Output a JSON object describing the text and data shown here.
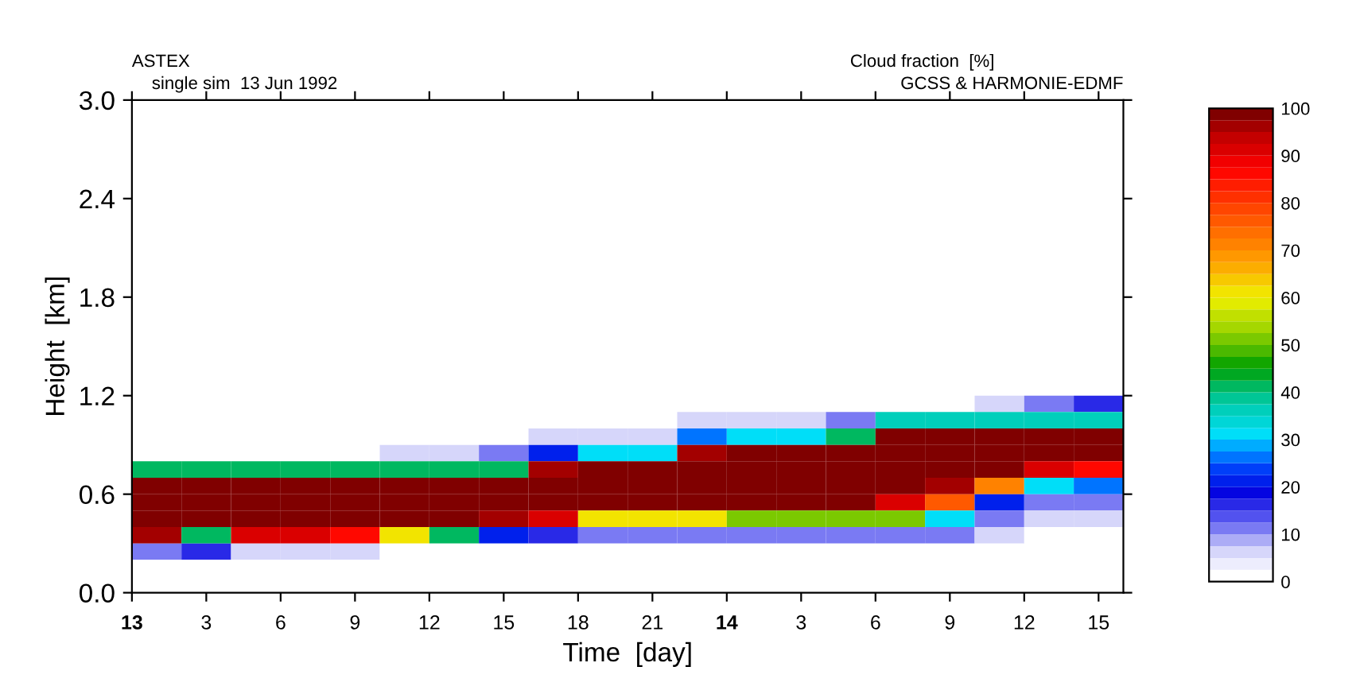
{
  "chart_data": {
    "type": "heatmap",
    "title": "ASTEX",
    "subtitle": "single sim  13 Jun 1992",
    "clabel": "Cloud fraction  [%]",
    "annotations": [
      "GCSS & HARMONIE-EDMF"
    ],
    "xlabel": "Time  [day]",
    "ylabel": "Height  [km]",
    "x": [
      "1992-06-13T01:00",
      "1992-06-13T03:00",
      "1992-06-13T05:00",
      "1992-06-13T07:00",
      "1992-06-13T09:00",
      "1992-06-13T11:00",
      "1992-06-13T13:00",
      "1992-06-13T15:00",
      "1992-06-13T17:00",
      "1992-06-13T19:00",
      "1992-06-13T21:00",
      "1992-06-13T23:00",
      "1992-06-14T01:00",
      "1992-06-14T03:00",
      "1992-06-14T05:00",
      "1992-06-14T07:00",
      "1992-06-14T09:00",
      "1992-06-14T11:00",
      "1992-06-14T13:00",
      "1992-06-14T15:00"
    ],
    "xlim": [
      "1992-06-13T00:00",
      "1992-06-14T16:00"
    ],
    "ylim": [
      0,
      3.0
    ],
    "xticks": [
      {
        "value": "1992-06-13T00:00",
        "label": "13"
      },
      {
        "value": "1992-06-13T03:00",
        "label": "3"
      },
      {
        "value": "1992-06-13T06:00",
        "label": "6"
      },
      {
        "value": "1992-06-13T09:00",
        "label": "9"
      },
      {
        "value": "1992-06-13T12:00",
        "label": "12"
      },
      {
        "value": "1992-06-13T15:00",
        "label": "15"
      },
      {
        "value": "1992-06-13T18:00",
        "label": "18"
      },
      {
        "value": "1992-06-13T21:00",
        "label": "21"
      },
      {
        "value": "1992-06-14T00:00",
        "label": "14"
      },
      {
        "value": "1992-06-14T03:00",
        "label": "3"
      },
      {
        "value": "1992-06-14T06:00",
        "label": "6"
      },
      {
        "value": "1992-06-14T09:00",
        "label": "9"
      },
      {
        "value": "1992-06-14T12:00",
        "label": "12"
      },
      {
        "value": "1992-06-14T15:00",
        "label": "15"
      }
    ],
    "yticks": [
      {
        "value": 0,
        "label": "0.0"
      },
      {
        "value": 0.6,
        "label": "0.6"
      },
      {
        "value": 1.2,
        "label": "1.2"
      },
      {
        "value": 1.8,
        "label": "1.8"
      },
      {
        "value": 2.4,
        "label": "2.4"
      },
      {
        "value": 3.0,
        "label": "3.0"
      }
    ],
    "clim": [
      0,
      100
    ],
    "cticks": [
      0,
      10,
      20,
      30,
      40,
      50,
      60,
      70,
      80,
      90,
      100
    ],
    "cells": [
      [
        0,
        0,
        0,
        0,
        0,
        0,
        0,
        0,
        0,
        0,
        0,
        0,
        0,
        0,
        0,
        0,
        0,
        0,
        0,
        0
      ],
      [
        0,
        0,
        0,
        0,
        0,
        0,
        0,
        0,
        0,
        0,
        0,
        0,
        0,
        0,
        0,
        0,
        0,
        0,
        0,
        0
      ],
      [
        0,
        0,
        0,
        0,
        0,
        0,
        0,
        0,
        0,
        0,
        0,
        0,
        0,
        0,
        0,
        0,
        0,
        0,
        0,
        0
      ],
      [
        0,
        0,
        0,
        0,
        0,
        0,
        0,
        0,
        0,
        0,
        0,
        0,
        0,
        0,
        0,
        0,
        0,
        0,
        0,
        0
      ],
      [
        0,
        0,
        0,
        0,
        0,
        0,
        0,
        0,
        0,
        0,
        0,
        0,
        0,
        0,
        0,
        0,
        0,
        0,
        0,
        0
      ],
      [
        0,
        0,
        0,
        0,
        0,
        0,
        0,
        0,
        0,
        0,
        0,
        0,
        0,
        0,
        0,
        0,
        0,
        0,
        0,
        0
      ],
      [
        0,
        0,
        0,
        0,
        0,
        0,
        0,
        0,
        0,
        0,
        0,
        0,
        0,
        0,
        0,
        0,
        0,
        0,
        0,
        0
      ],
      [
        0,
        0,
        0,
        0,
        0,
        0,
        0,
        0,
        0,
        0,
        0,
        0,
        0,
        0,
        0,
        0,
        0,
        0,
        0,
        0
      ],
      [
        0,
        0,
        0,
        0,
        0,
        0,
        0,
        0,
        0,
        0,
        0,
        0,
        0,
        0,
        0,
        0,
        0,
        0,
        0,
        0
      ],
      [
        0,
        0,
        0,
        0,
        0,
        0,
        0,
        0,
        0,
        0,
        0,
        0,
        0,
        0,
        0,
        0,
        0,
        0,
        0,
        0
      ],
      [
        0,
        0,
        0,
        0,
        0,
        0,
        0,
        0,
        0,
        0,
        0,
        0,
        0,
        0,
        0,
        0,
        0,
        0,
        0,
        0
      ],
      [
        0,
        0,
        0,
        0,
        0,
        0,
        0,
        0,
        0,
        0,
        0,
        0,
        0,
        0,
        0,
        0,
        0,
        0,
        0,
        0
      ],
      [
        0,
        0,
        0,
        0,
        0,
        0,
        0,
        0,
        0,
        0,
        0,
        0,
        0,
        0,
        0,
        0,
        0,
        0,
        0,
        0
      ],
      [
        0,
        0,
        0,
        0,
        0,
        0,
        0,
        0,
        0,
        0,
        0,
        0,
        0,
        0,
        0,
        0,
        0,
        0,
        0,
        0
      ],
      [
        0,
        0,
        0,
        0,
        0,
        0,
        0,
        0,
        0,
        0,
        0,
        0,
        0,
        0,
        0,
        0,
        0,
        0,
        0,
        0
      ],
      [
        0,
        0,
        0,
        0,
        0,
        0,
        0,
        0,
        0,
        0,
        0,
        0,
        0,
        0,
        0,
        0,
        0,
        0,
        0,
        0
      ],
      [
        0,
        0,
        0,
        0,
        0,
        0,
        0,
        0,
        0,
        0,
        0,
        0,
        0,
        0,
        0,
        0,
        0,
        0,
        0,
        0
      ],
      [
        0,
        0,
        0,
        0,
        0,
        0,
        0,
        0,
        0,
        0,
        0,
        0,
        0,
        0,
        0,
        0,
        0,
        0,
        0,
        0
      ],
      [
        0,
        0,
        0,
        0,
        0,
        0,
        0,
        0,
        0,
        0,
        0,
        0,
        0,
        0,
        0,
        0,
        0,
        5,
        10,
        15
      ],
      [
        0,
        0,
        0,
        0,
        0,
        0,
        0,
        0,
        0,
        0,
        0,
        5,
        5,
        5,
        10,
        35,
        35,
        35,
        35,
        35
      ],
      [
        0,
        0,
        0,
        0,
        0,
        0,
        0,
        0,
        5,
        5,
        5,
        25,
        30,
        30,
        40,
        100,
        100,
        100,
        100,
        100
      ],
      [
        0,
        0,
        0,
        0,
        0,
        5,
        5,
        10,
        20,
        30,
        30,
        95,
        100,
        100,
        100,
        100,
        100,
        100,
        100,
        100
      ],
      [
        40,
        40,
        40,
        40,
        40,
        40,
        40,
        40,
        95,
        100,
        100,
        100,
        100,
        100,
        100,
        100,
        100,
        100,
        90,
        85
      ],
      [
        100,
        100,
        100,
        100,
        100,
        100,
        100,
        100,
        100,
        100,
        100,
        100,
        100,
        100,
        100,
        100,
        95,
        70,
        30,
        25
      ],
      [
        100,
        100,
        100,
        100,
        100,
        100,
        100,
        100,
        100,
        100,
        100,
        100,
        100,
        100,
        100,
        90,
        75,
        20,
        10,
        10
      ],
      [
        100,
        100,
        100,
        100,
        100,
        100,
        100,
        95,
        90,
        60,
        60,
        60,
        50,
        50,
        50,
        50,
        30,
        10,
        5,
        5
      ],
      [
        95,
        40,
        90,
        90,
        85,
        60,
        40,
        20,
        15,
        10,
        10,
        10,
        10,
        10,
        10,
        10,
        10,
        5,
        0,
        0
      ],
      [
        10,
        15,
        5,
        5,
        5,
        0,
        0,
        0,
        0,
        0,
        0,
        0,
        0,
        0,
        0,
        0,
        0,
        0,
        0,
        0
      ],
      [
        0,
        0,
        0,
        0,
        0,
        0,
        0,
        0,
        0,
        0,
        0,
        0,
        0,
        0,
        0,
        0,
        0,
        0,
        0,
        0
      ],
      [
        0,
        0,
        0,
        0,
        0,
        0,
        0,
        0,
        0,
        0,
        0,
        0,
        0,
        0,
        0,
        0,
        0,
        0,
        0,
        0
      ]
    ]
  }
}
